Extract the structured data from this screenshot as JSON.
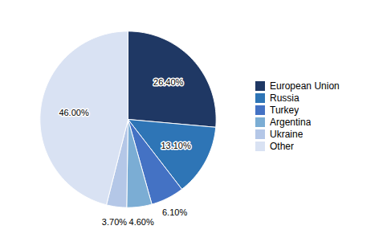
{
  "chart_data": {
    "type": "pie",
    "categories": [
      "European Union",
      "Russia",
      "Turkey",
      "Argentina",
      "Ukraine",
      "Other"
    ],
    "values": [
      26.4,
      13.1,
      6.1,
      4.6,
      3.7,
      46.0
    ],
    "value_labels": [
      "26.40%",
      "13.10%",
      "6.10%",
      "4.60%",
      "3.70%",
      "46.00%"
    ],
    "colors": [
      "#1F3864",
      "#2E75B6",
      "#4472C4",
      "#7BADD4",
      "#B4C7E7",
      "#D9E2F3"
    ],
    "data_labels": true,
    "legend": "right"
  }
}
